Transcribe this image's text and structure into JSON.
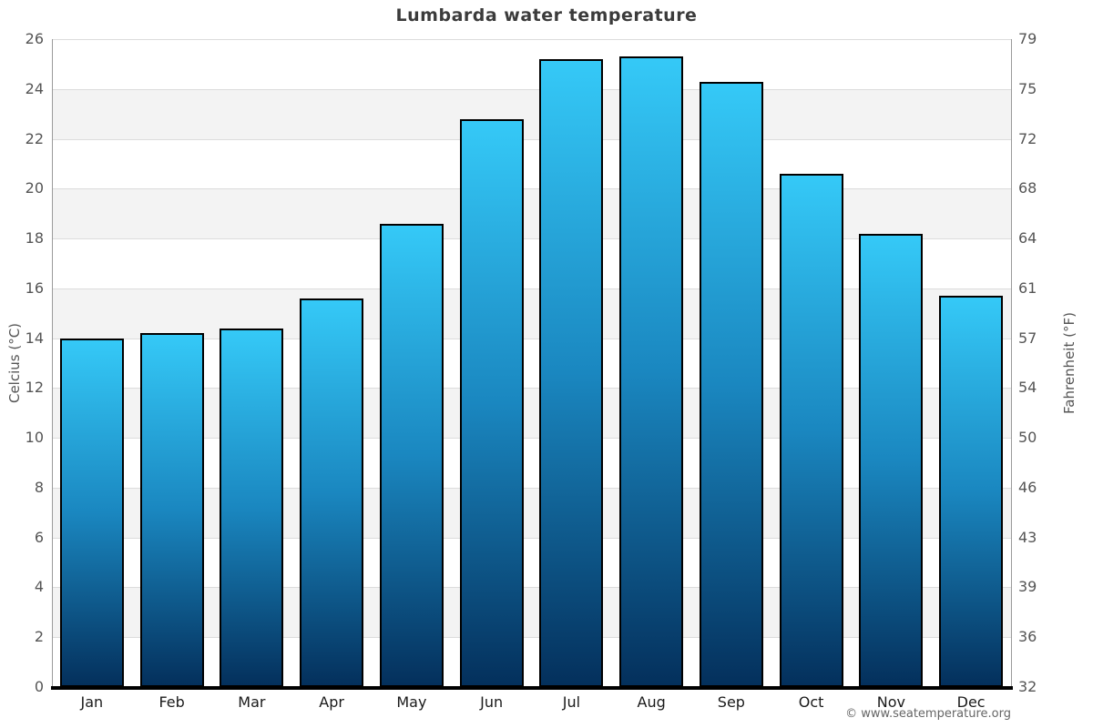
{
  "page": {
    "copyright": "© www.seatemperature.org"
  },
  "chart_data": {
    "type": "bar",
    "title": "Lumbarda water temperature",
    "categories": [
      "Jan",
      "Feb",
      "Mar",
      "Apr",
      "May",
      "Jun",
      "Jul",
      "Aug",
      "Sep",
      "Oct",
      "Nov",
      "Dec"
    ],
    "values": [
      14.0,
      14.2,
      14.4,
      15.6,
      18.6,
      22.8,
      25.2,
      25.3,
      24.3,
      20.6,
      18.2,
      15.7
    ],
    "unit": "°C",
    "ylabel_left": "Celcius (°C)",
    "ylabel_right": "Fahrenheit (°F)",
    "ylim": [
      0,
      26
    ],
    "ytick_step": 2,
    "yticks_left": [
      "26",
      "24",
      "22",
      "20",
      "18",
      "16",
      "14",
      "12",
      "10",
      "8",
      "6",
      "4",
      "2",
      "0"
    ],
    "yticks_right": [
      "79",
      "75",
      "72",
      "68",
      "64",
      "61",
      "57",
      "54",
      "50",
      "46",
      "43",
      "39",
      "36",
      "32"
    ],
    "legend": "none",
    "grid": "horizontal-bands",
    "colors": {
      "bar_gradient_top": "#35c9f7",
      "bar_gradient_mid": "#1a87c0",
      "bar_gradient_bottom": "#04305c",
      "bar_border": "#000000",
      "band_gray": "#f3f3f3",
      "band_white": "#ffffff",
      "grid_line": "#dcdcdc",
      "y_axis_line": "#9a9a9a",
      "x_axis_line": "#000000",
      "title_color": "#3b3b3b",
      "tick_label_color": "#555555",
      "category_label_color": "#1a1a1a",
      "copyright_color": "#666666"
    }
  }
}
